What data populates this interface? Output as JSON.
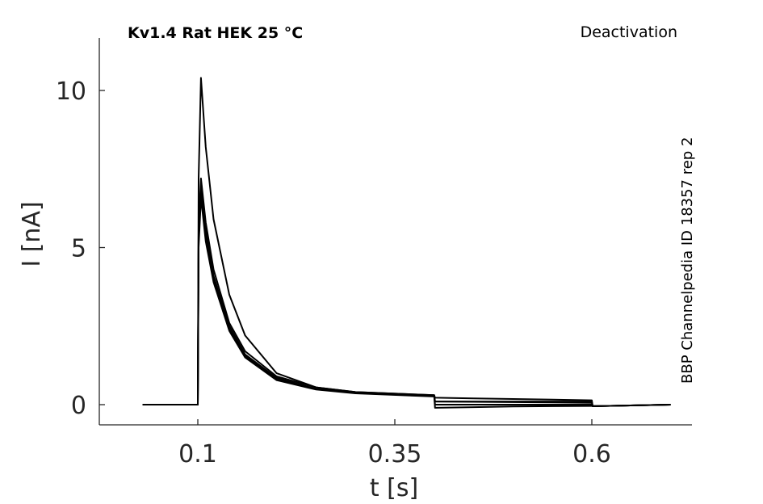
{
  "chart_data": {
    "type": "line",
    "title": "Kv1.4  Rat  HEK  25 °C",
    "protocol_label": "Deactivation",
    "side_label": "BBP Channelpedia ID 18357 rep 2",
    "xlabel": "t [s]",
    "ylabel": "I [nA]",
    "xlim": [
      0.0,
      0.75
    ],
    "ylim": [
      -0.6,
      11.8
    ],
    "x_ticks": [
      0.1,
      0.35,
      0.6
    ],
    "x_tick_labels": [
      "0.1",
      "0.35",
      "0.6"
    ],
    "y_ticks": [
      0,
      5,
      10
    ],
    "y_tick_labels": [
      "0",
      "5",
      "10"
    ],
    "grid": false,
    "legend": false,
    "trace_color": "#000000",
    "series": [
      {
        "x": [
          0.03,
          0.1,
          0.101,
          0.104,
          0.11,
          0.12,
          0.14,
          0.16,
          0.2,
          0.25,
          0.3,
          0.4,
          0.401,
          0.45,
          0.5,
          0.55,
          0.6,
          0.601,
          0.7
        ],
        "y": [
          0,
          0,
          7.2,
          10.4,
          8.2,
          5.9,
          3.5,
          2.2,
          1.0,
          0.55,
          0.4,
          0.3,
          0.1,
          0.1,
          0.1,
          0.1,
          0.1,
          -0.05,
          0
        ]
      },
      {
        "x": [
          0.03,
          0.1,
          0.101,
          0.104,
          0.11,
          0.12,
          0.14,
          0.16,
          0.2,
          0.25,
          0.3,
          0.4,
          0.401,
          0.45,
          0.5,
          0.55,
          0.6,
          0.601,
          0.7
        ],
        "y": [
          0,
          0,
          5.6,
          7.2,
          5.8,
          4.3,
          2.6,
          1.7,
          0.9,
          0.55,
          0.4,
          0.3,
          0.22,
          0.2,
          0.18,
          0.16,
          0.14,
          -0.05,
          0
        ]
      },
      {
        "x": [
          0.03,
          0.1,
          0.101,
          0.104,
          0.11,
          0.12,
          0.14,
          0.16,
          0.2,
          0.25,
          0.3,
          0.4,
          0.401,
          0.45,
          0.5,
          0.55,
          0.6,
          0.601,
          0.7
        ],
        "y": [
          0,
          0,
          5.4,
          7.0,
          5.6,
          4.1,
          2.5,
          1.6,
          0.85,
          0.5,
          0.38,
          0.28,
          0.1,
          0.09,
          0.08,
          0.07,
          0.06,
          -0.05,
          0
        ]
      },
      {
        "x": [
          0.03,
          0.1,
          0.101,
          0.104,
          0.11,
          0.12,
          0.14,
          0.16,
          0.2,
          0.25,
          0.3,
          0.4,
          0.401,
          0.45,
          0.5,
          0.55,
          0.6,
          0.601,
          0.7
        ],
        "y": [
          0,
          0,
          5.2,
          6.8,
          5.4,
          4.0,
          2.4,
          1.55,
          0.8,
          0.5,
          0.37,
          0.27,
          0.0,
          0.0,
          0.0,
          0.0,
          0.0,
          -0.05,
          0
        ]
      },
      {
        "x": [
          0.03,
          0.1,
          0.101,
          0.104,
          0.11,
          0.12,
          0.14,
          0.16,
          0.2,
          0.25,
          0.3,
          0.4,
          0.401,
          0.45,
          0.5,
          0.55,
          0.6,
          0.601,
          0.7
        ],
        "y": [
          0,
          0,
          5.0,
          6.6,
          5.2,
          3.9,
          2.35,
          1.5,
          0.78,
          0.48,
          0.36,
          0.26,
          -0.1,
          -0.08,
          -0.06,
          -0.05,
          -0.04,
          -0.05,
          0
        ]
      }
    ]
  }
}
